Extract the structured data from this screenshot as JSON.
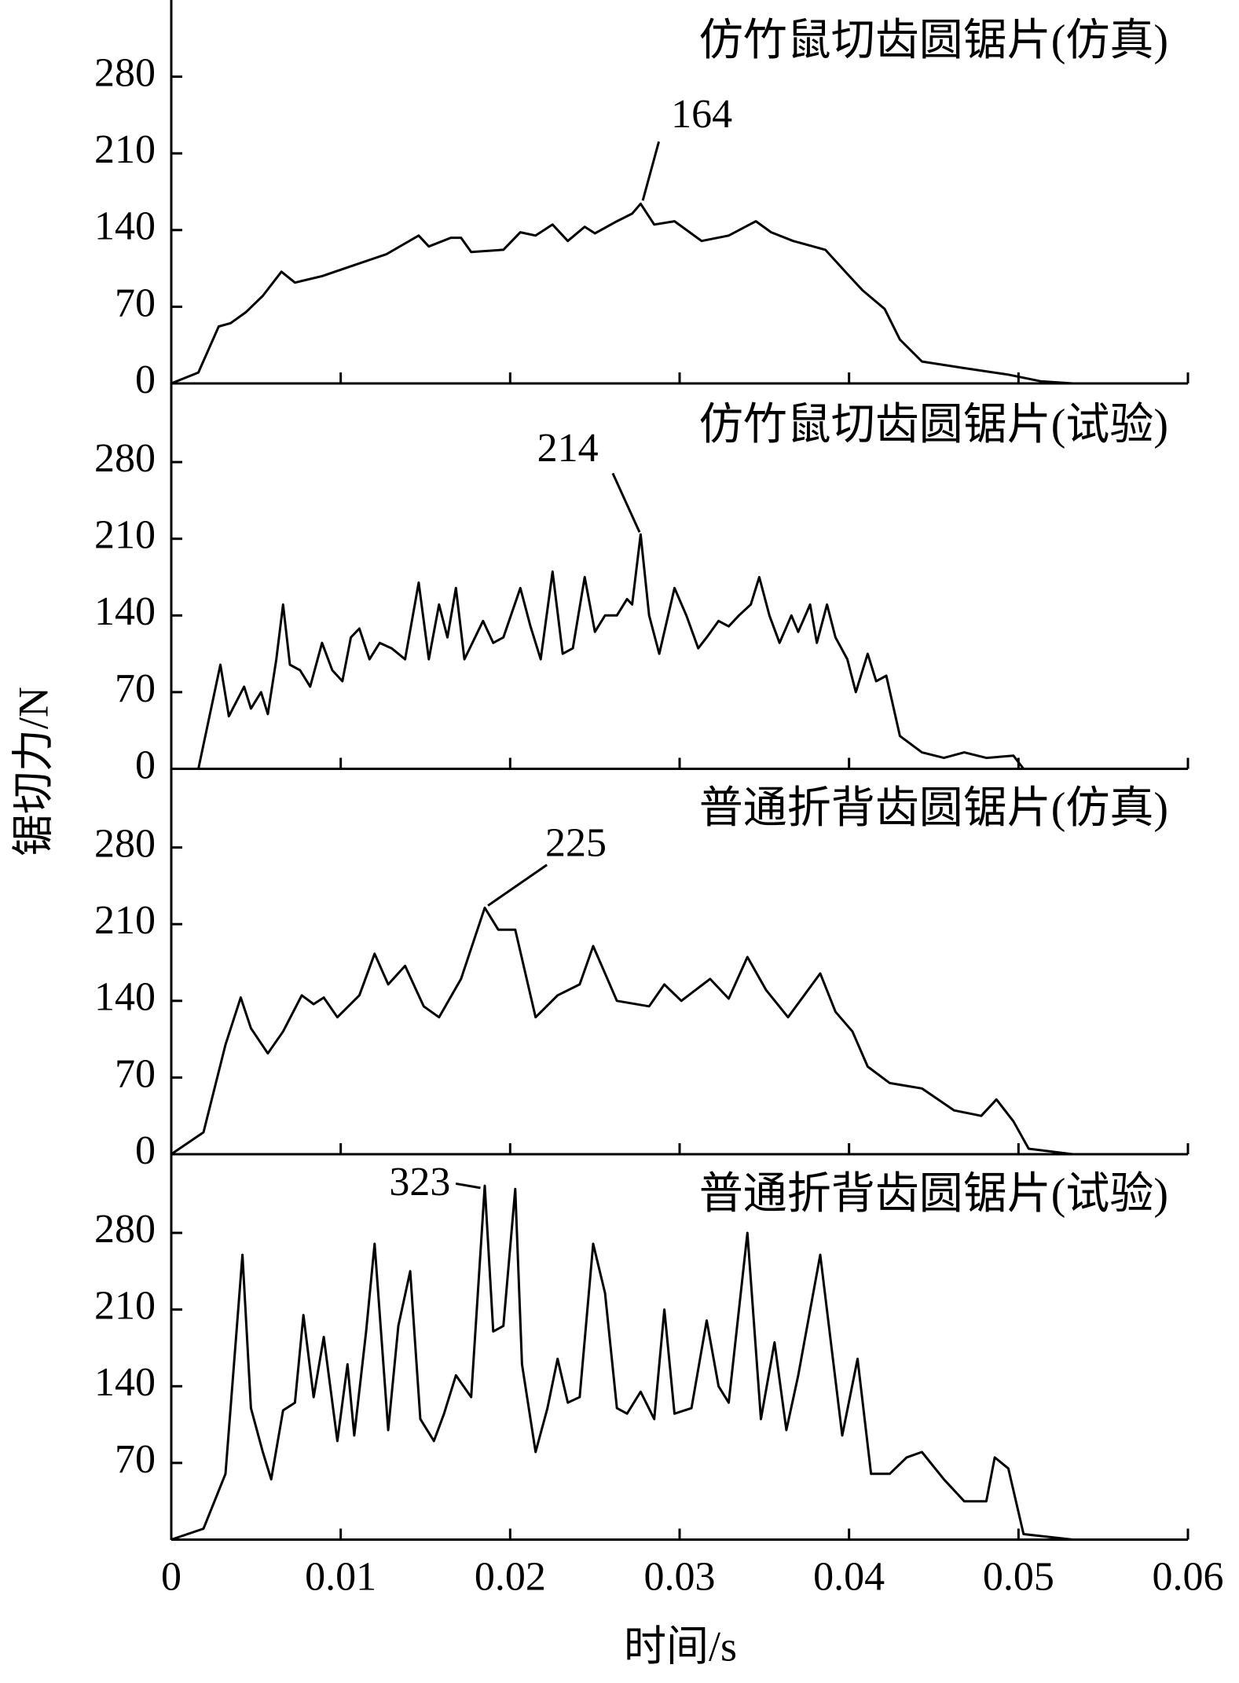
{
  "chart_data": [
    {
      "type": "line",
      "title": "仿竹鼠切齿圆锯片(仿真)",
      "annotation": "164",
      "xlim": [
        0,
        0.06
      ],
      "ylim": [
        0,
        350
      ],
      "yticks": [
        0,
        70,
        140,
        210,
        280
      ],
      "series": [
        {
          "color": "#000000",
          "x": [
            0,
            0.0016,
            0.0028,
            0.0035,
            0.0044,
            0.0054,
            0.0065,
            0.0073,
            0.0089,
            0.0108,
            0.0127,
            0.0146,
            0.0152,
            0.0165,
            0.0171,
            0.0177,
            0.0196,
            0.0206,
            0.0215,
            0.0225,
            0.0234,
            0.0244,
            0.025,
            0.0263,
            0.0272,
            0.0277,
            0.0285,
            0.0297,
            0.0313,
            0.0329,
            0.0345,
            0.0354,
            0.0367,
            0.0386,
            0.0399,
            0.0408,
            0.0421,
            0.043,
            0.0443,
            0.0468,
            0.0494,
            0.0513,
            0.0532
          ],
          "values": [
            0,
            10,
            52,
            55,
            65,
            80,
            102,
            92,
            98,
            108,
            118,
            135,
            125,
            133,
            133,
            120,
            122,
            138,
            135,
            145,
            130,
            143,
            137,
            148,
            155,
            164,
            145,
            148,
            130,
            135,
            148,
            138,
            130,
            122,
            100,
            85,
            68,
            40,
            20,
            14,
            8,
            2,
            0
          ]
        }
      ]
    },
    {
      "type": "line",
      "title": "仿竹鼠切齿圆锯片(试验)",
      "annotation": "214",
      "xlim": [
        0,
        0.06
      ],
      "ylim": [
        0,
        350
      ],
      "yticks": [
        0,
        70,
        140,
        210,
        280
      ],
      "series": [
        {
          "color": "#000000",
          "x": [
            0,
            0.0016,
            0.0029,
            0.0034,
            0.0043,
            0.0047,
            0.0053,
            0.0057,
            0.0062,
            0.0066,
            0.007,
            0.0076,
            0.0082,
            0.0089,
            0.0095,
            0.0101,
            0.0106,
            0.0111,
            0.0117,
            0.0123,
            0.013,
            0.0138,
            0.0146,
            0.0152,
            0.0158,
            0.0163,
            0.0168,
            0.0173,
            0.0184,
            0.019,
            0.0196,
            0.0206,
            0.0212,
            0.0218,
            0.0225,
            0.0231,
            0.0237,
            0.0244,
            0.025,
            0.0256,
            0.0263,
            0.0269,
            0.0272,
            0.0277,
            0.0282,
            0.0288,
            0.0297,
            0.0304,
            0.0311,
            0.0316,
            0.0323,
            0.0329,
            0.0335,
            0.0342,
            0.0347,
            0.0353,
            0.0359,
            0.0366,
            0.037,
            0.0377,
            0.0381,
            0.0387,
            0.0392,
            0.0399,
            0.0404,
            0.0411,
            0.0416,
            0.0422,
            0.043,
            0.0443,
            0.0456,
            0.0468,
            0.0481,
            0.0497,
            0.0503,
            0.0532
          ],
          "values": [
            0,
            0,
            95,
            48,
            75,
            55,
            70,
            50,
            100,
            150,
            95,
            90,
            75,
            115,
            90,
            80,
            120,
            128,
            100,
            115,
            110,
            100,
            170,
            100,
            150,
            120,
            165,
            100,
            135,
            115,
            120,
            165,
            130,
            100,
            180,
            105,
            110,
            175,
            125,
            140,
            140,
            155,
            150,
            214,
            140,
            105,
            165,
            140,
            110,
            120,
            135,
            130,
            140,
            150,
            175,
            140,
            115,
            140,
            125,
            150,
            115,
            150,
            120,
            100,
            70,
            105,
            80,
            85,
            30,
            15,
            10,
            15,
            10,
            12,
            0,
            0
          ]
        }
      ]
    },
    {
      "type": "line",
      "title": "普通折背齿圆锯片(仿真)",
      "annotation": "225",
      "xlim": [
        0,
        0.06
      ],
      "ylim": [
        0,
        350
      ],
      "yticks": [
        0,
        70,
        140,
        210,
        280
      ],
      "series": [
        {
          "color": "#000000",
          "x": [
            0,
            0.0019,
            0.0032,
            0.0041,
            0.0047,
            0.0057,
            0.0066,
            0.0077,
            0.0084,
            0.009,
            0.0098,
            0.0111,
            0.012,
            0.0128,
            0.0138,
            0.0149,
            0.0158,
            0.0171,
            0.0185,
            0.0193,
            0.0203,
            0.0215,
            0.0228,
            0.0241,
            0.0249,
            0.0263,
            0.0282,
            0.0291,
            0.0301,
            0.0318,
            0.0329,
            0.034,
            0.0351,
            0.0364,
            0.0383,
            0.0392,
            0.0402,
            0.0411,
            0.0424,
            0.0443,
            0.0462,
            0.0478,
            0.0487,
            0.0497,
            0.0506,
            0.0532
          ],
          "values": [
            0,
            20,
            100,
            143,
            115,
            92,
            112,
            145,
            137,
            143,
            125,
            145,
            183,
            155,
            172,
            135,
            125,
            160,
            225,
            205,
            205,
            125,
            145,
            155,
            190,
            140,
            135,
            155,
            140,
            160,
            142,
            180,
            150,
            125,
            165,
            130,
            112,
            80,
            65,
            60,
            40,
            35,
            50,
            30,
            5,
            0
          ]
        }
      ]
    },
    {
      "type": "line",
      "title": "普通折背齿圆锯片(试验)",
      "annotation": "323",
      "xlim": [
        0,
        0.06
      ],
      "xticks": [
        0,
        0.01,
        0.02,
        0.03,
        0.04,
        0.05,
        0.06
      ],
      "xlabel": "时间/s",
      "ylabel": "锯切力/N",
      "ylim": [
        0,
        350
      ],
      "yticks": [
        70,
        140,
        210,
        280
      ],
      "series": [
        {
          "color": "#000000",
          "x": [
            0,
            0.0019,
            0.0032,
            0.0042,
            0.0047,
            0.0054,
            0.0059,
            0.0066,
            0.0073,
            0.0078,
            0.0084,
            0.009,
            0.0098,
            0.0104,
            0.0108,
            0.0115,
            0.012,
            0.0128,
            0.0134,
            0.0141,
            0.0147,
            0.0155,
            0.0161,
            0.0168,
            0.0177,
            0.0185,
            0.019,
            0.0196,
            0.0203,
            0.0207,
            0.0215,
            0.0222,
            0.0228,
            0.0234,
            0.0241,
            0.0249,
            0.0256,
            0.0263,
            0.0269,
            0.0277,
            0.0285,
            0.0291,
            0.0297,
            0.0307,
            0.0316,
            0.0323,
            0.0329,
            0.034,
            0.0348,
            0.0356,
            0.0363,
            0.037,
            0.0383,
            0.0396,
            0.0405,
            0.0413,
            0.0424,
            0.0434,
            0.0443,
            0.0456,
            0.0468,
            0.0481,
            0.0486,
            0.0494,
            0.0503,
            0.0532
          ],
          "values": [
            0,
            10,
            60,
            260,
            120,
            80,
            55,
            118,
            125,
            205,
            130,
            185,
            90,
            160,
            95,
            190,
            270,
            100,
            195,
            245,
            110,
            90,
            115,
            150,
            130,
            323,
            190,
            195,
            320,
            160,
            80,
            120,
            165,
            125,
            130,
            270,
            225,
            120,
            115,
            135,
            110,
            210,
            115,
            120,
            200,
            140,
            125,
            280,
            110,
            180,
            100,
            150,
            260,
            95,
            165,
            60,
            60,
            75,
            80,
            55,
            35,
            35,
            75,
            65,
            5,
            0
          ]
        }
      ]
    }
  ]
}
